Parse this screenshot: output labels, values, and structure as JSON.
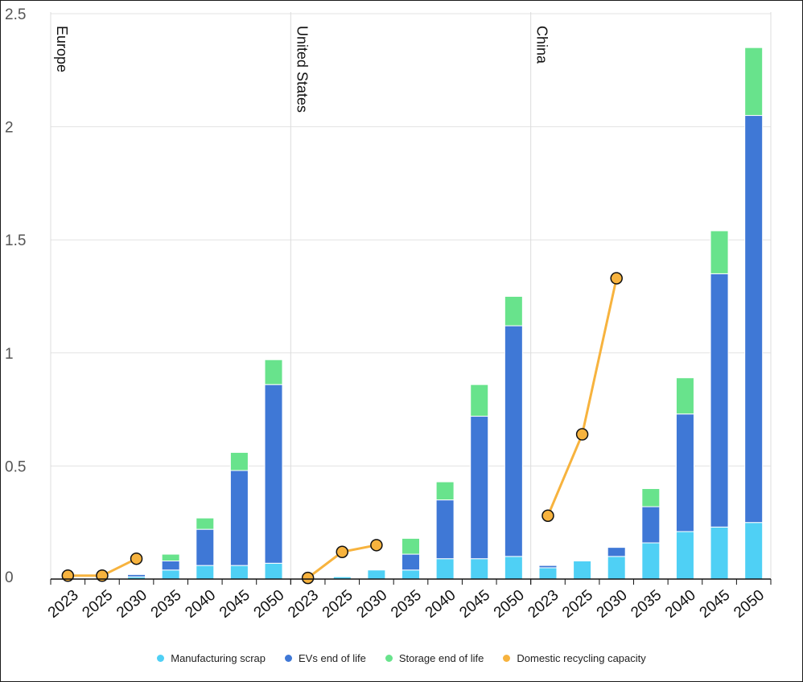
{
  "chart_data": {
    "type": "bar",
    "stacked": true,
    "ylim": [
      0,
      2.5
    ],
    "yticks": [
      "0",
      "0.5",
      "1",
      "1.5",
      "2",
      "2.5"
    ],
    "grid": true,
    "legend_position": "bottom",
    "panels": [
      {
        "name": "Europe",
        "categories": [
          "2023",
          "2025",
          "2030",
          "2035",
          "2040",
          "2045",
          "2050"
        ],
        "stacks": {
          "manufacturing_scrap": [
            null,
            null,
            0.01,
            0.04,
            0.06,
            0.06,
            0.07
          ],
          "evs_end_of_life": [
            null,
            null,
            0.01,
            0.04,
            0.16,
            0.42,
            0.79
          ],
          "storage_end_of_life": [
            null,
            null,
            null,
            0.03,
            0.05,
            0.08,
            0.11
          ]
        },
        "recycling_capacity": [
          0.015,
          0.015,
          0.09,
          null,
          null,
          null,
          null
        ]
      },
      {
        "name": "United States",
        "categories": [
          "2023",
          "2025",
          "2030",
          "2035",
          "2040",
          "2045",
          "2050"
        ],
        "stacks": {
          "manufacturing_scrap": [
            null,
            0.01,
            0.04,
            0.04,
            0.09,
            0.09,
            0.1
          ],
          "evs_end_of_life": [
            null,
            null,
            null,
            0.07,
            0.26,
            0.63,
            1.02
          ],
          "storage_end_of_life": [
            null,
            null,
            null,
            0.07,
            0.08,
            0.14,
            0.13
          ]
        },
        "recycling_capacity": [
          0.005,
          0.12,
          0.15,
          null,
          null,
          null,
          null
        ]
      },
      {
        "name": "China",
        "categories": [
          "2023",
          "2025",
          "2030",
          "2035",
          "2040",
          "2045",
          "2050"
        ],
        "stacks": {
          "manufacturing_scrap": [
            0.05,
            0.08,
            0.1,
            0.16,
            0.21,
            0.23,
            0.25
          ],
          "evs_end_of_life": [
            0.01,
            null,
            0.04,
            0.16,
            0.52,
            1.12,
            1.8
          ],
          "storage_end_of_life": [
            null,
            null,
            null,
            0.08,
            0.16,
            0.19,
            0.3
          ]
        },
        "recycling_capacity": [
          0.28,
          0.64,
          1.33,
          null,
          null,
          null,
          null
        ]
      }
    ],
    "series": [
      {
        "key": "manufacturing_scrap",
        "name": "Manufacturing scrap",
        "color": "#4fd0f5"
      },
      {
        "key": "evs_end_of_life",
        "name": "EVs end of life",
        "color": "#3f78d6"
      },
      {
        "key": "storage_end_of_life",
        "name": "Storage end of life",
        "color": "#68e38c"
      },
      {
        "key": "recycling_capacity",
        "name": "Domestic recycling capacity",
        "color": "#f7b33e",
        "type": "line"
      }
    ]
  }
}
